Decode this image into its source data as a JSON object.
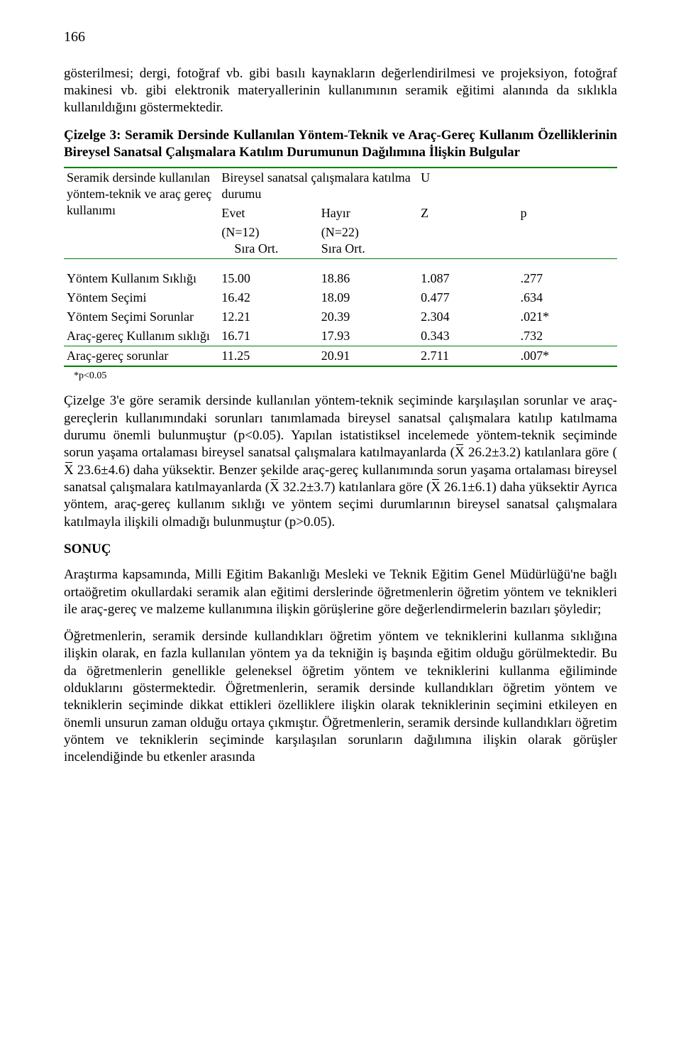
{
  "pageNumber": "166",
  "para1": "gösterilmesi; dergi, fotoğraf vb. gibi basılı kaynakların değerlendirilmesi ve projeksiyon, fotoğraf makinesi vb. gibi elektronik materyallerinin kullanımının seramik eğitimi alanında da sıklıkla kullanıldığını göstermektedir.",
  "tableTitle": "Çizelge 3: Seramik Dersinde Kullanılan Yöntem-Teknik ve Araç-Gereç Kullanım Özelliklerinin Bireysel Sanatsal Çalışmalara Katılım Durumunun Dağılımına İlişkin Bulgular",
  "table": {
    "rowLabelHeader": "Seramik dersinde kullanılan yöntem-teknik ve araç gereç kullanımı",
    "groupHeader": "Bireysel sanatsal çalışmalara katılma durumu",
    "uHeader": "U",
    "evetHeader": "Evet",
    "hayirHeader": "Hayır",
    "zHeader": "Z",
    "pHeader": "p",
    "evetN": "(N=12)",
    "hayirN": "(N=22)",
    "siraOrt": "Sıra Ort.",
    "rows": [
      {
        "label": "Yöntem Kullanım Sıklığı",
        "a": "15.00",
        "b": "18.86",
        "c": "1.087",
        "d": ".277"
      },
      {
        "label": "Yöntem Seçimi",
        "a": "16.42",
        "b": "18.09",
        "c": "0.477",
        "d": ".634"
      },
      {
        "label": "Yöntem Seçimi Sorunlar",
        "a": "12.21",
        "b": "20.39",
        "c": "2.304",
        "d": ".021*"
      },
      {
        "label": "Araç-gereç Kullanım sıklığı",
        "a": "16.71",
        "b": "17.93",
        "c": "0.343",
        "d": ".732"
      },
      {
        "label": "Araç-gereç sorunlar",
        "a": "11.25",
        "b": "20.91",
        "c": "2.711",
        "d": ".007*"
      }
    ],
    "footnote": "*p<0.05",
    "border_color": "#008000"
  },
  "para2a": "Çizelge 3'e göre seramik dersinde kullanılan yöntem-teknik seçiminde karşılaşılan sorunlar ve araç-gereçlerin kullanımındaki sorunları tanımlamada bireysel sanatsal çalışmalara katılıp katılmama durumu önemli bulunmuştur (p<0.05). Yapılan istatistiksel incelemede yöntem-teknik seçiminde sorun yaşama ortalaması bireysel sanatsal çalışmalara katılmayanlarda (",
  "xbar": "X",
  "para2b": " 26.2±3.2) katılanlara göre (",
  "para2c": " 23.6±4.6) daha yüksektir. Benzer şekilde araç-gereç kullanımında sorun yaşama ortalaması bireysel sanatsal çalışmalara katılmayanlarda (",
  "para2d": " 32.2±3.7) katılanlara göre (",
  "para2e": " 26.1±6.1) daha yüksektir Ayrıca yöntem, araç-gereç kullanım sıklığı ve yöntem seçimi durumlarının bireysel sanatsal çalışmalara katılmayla ilişkili olmadığı bulunmuştur (p>0.05).",
  "sonucHead": "SONUÇ",
  "para3": "Araştırma kapsamında, Milli Eğitim Bakanlığı Mesleki ve Teknik Eğitim Genel Müdürlüğü'ne bağlı ortaöğretim okullardaki seramik alan eğitimi derslerinde öğretmenlerin öğretim yöntem ve teknikleri ile araç-gereç ve malzeme kullanımına ilişkin görüşlerine göre değerlendirmelerin bazıları şöyledir;",
  "para4": "Öğretmenlerin, seramik dersinde kullandıkları öğretim yöntem ve tekniklerini kullanma sıklığına ilişkin olarak, en fazla kullanılan yöntem ya da tekniğin iş başında eğitim olduğu görülmektedir. Bu da öğretmenlerin genellikle geleneksel öğretim yöntem ve tekniklerini kullanma eğiliminde olduklarını göstermektedir. Öğretmenlerin, seramik dersinde kullandıkları öğretim yöntem ve tekniklerin seçiminde dikkat ettikleri özelliklere ilişkin olarak tekniklerinin seçimini etkileyen en önemli unsurun zaman olduğu ortaya çıkmıştır. Öğretmenlerin, seramik dersinde kullandıkları öğretim yöntem ve tekniklerin seçiminde karşılaşılan sorunların dağılımına ilişkin olarak görüşler incelendiğinde bu etkenler arasında"
}
